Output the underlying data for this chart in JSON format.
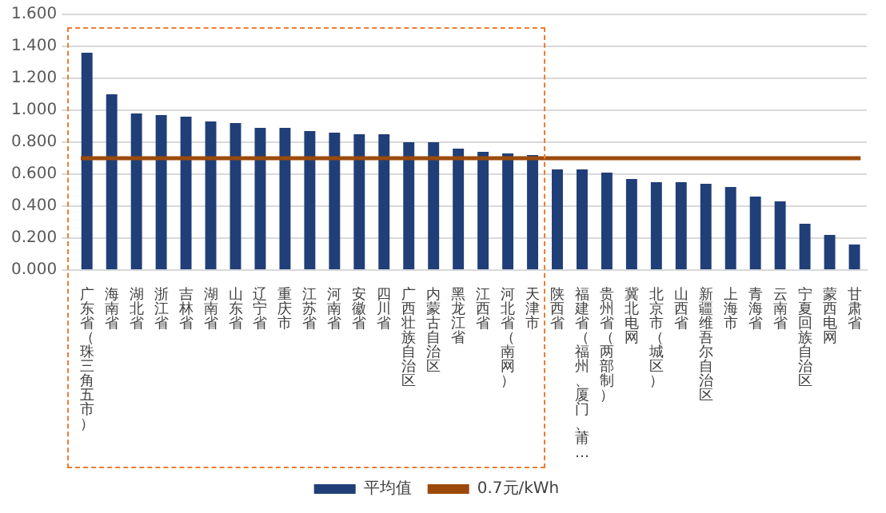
{
  "chart_data": {
    "type": "bar",
    "categories": [
      "广东省（珠三角五市）",
      "海南省",
      "湖北省",
      "浙江省",
      "吉林省",
      "湖南省",
      "山东省",
      "辽宁省",
      "重庆市",
      "江苏省",
      "河南省",
      "安徽省",
      "四川省",
      "广西壮族自治区",
      "内蒙古自治区",
      "黑龙江省",
      "江西省",
      "河北省（南网）",
      "天津市",
      "陕西省",
      "福建省（福州、厦门、莆…",
      "贵州省（两部制）",
      "冀北电网",
      "北京市（城区）",
      "山西省",
      "新疆维吾尔自治区",
      "上海市",
      "青海省",
      "云南省",
      "宁夏回族自治区",
      "蒙西电网",
      "甘肃省"
    ],
    "series": [
      {
        "name": "平均值",
        "color": "#203f78",
        "values": [
          1.36,
          1.1,
          0.98,
          0.97,
          0.96,
          0.93,
          0.92,
          0.89,
          0.89,
          0.87,
          0.86,
          0.85,
          0.85,
          0.8,
          0.8,
          0.76,
          0.74,
          0.73,
          0.72,
          0.63,
          0.63,
          0.61,
          0.57,
          0.55,
          0.55,
          0.54,
          0.52,
          0.46,
          0.43,
          0.29,
          0.22,
          0.16
        ]
      }
    ],
    "ylim": [
      0,
      1.6
    ],
    "yticks": [
      {
        "value": 0,
        "label": "0.000"
      },
      {
        "value": 0.2,
        "label": "0.200"
      },
      {
        "value": 0.4,
        "label": "0.400"
      },
      {
        "value": 0.6,
        "label": "0.600"
      },
      {
        "value": 0.8,
        "label": "0.800"
      },
      {
        "value": 1,
        "label": "1.000"
      },
      {
        "value": 1.2,
        "label": "1.200"
      },
      {
        "value": 1.4,
        "label": "1.400"
      },
      {
        "value": 1.6,
        "label": "1.600"
      }
    ],
    "ref_lines": [
      {
        "axis": "y",
        "value": 0.7,
        "label": "0.7元/kWh",
        "color": "#9c4a0b"
      }
    ],
    "grid": "y",
    "legend": "bottom"
  }
}
